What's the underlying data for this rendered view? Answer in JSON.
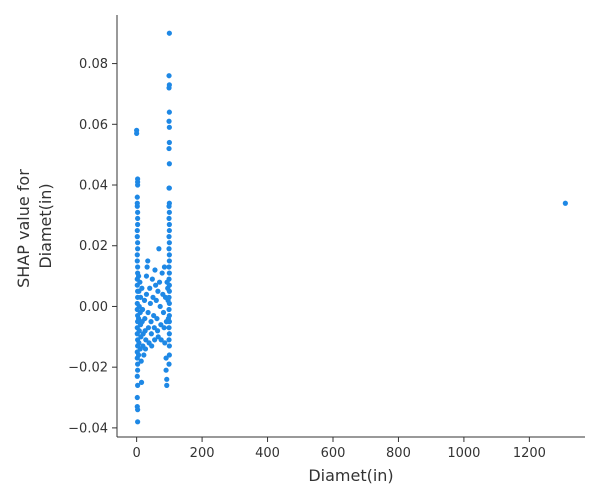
{
  "chart_data": {
    "type": "scatter",
    "title": "",
    "xlabel": "Diamet(in)",
    "ylabel_lines": [
      "SHAP value for",
      "Diamet(in)"
    ],
    "xlim": [
      -60,
      1370
    ],
    "ylim": [
      -0.043,
      0.096
    ],
    "x_ticks": [
      0,
      200,
      400,
      600,
      800,
      1000,
      1200
    ],
    "x_tick_labels": [
      "0",
      "200",
      "400",
      "600",
      "800",
      "1000",
      "1200"
    ],
    "y_ticks": [
      -0.04,
      -0.02,
      0.0,
      0.02,
      0.04,
      0.06,
      0.08
    ],
    "y_tick_labels": [
      "−0.04",
      "−0.02",
      "0.00",
      "0.02",
      "0.04",
      "0.06",
      "0.08"
    ],
    "grid": false,
    "point_color": "#1E88E5",
    "points": [
      [
        0,
        0.058
      ],
      [
        0,
        0.057
      ],
      [
        3,
        0.042
      ],
      [
        3,
        0.041
      ],
      [
        3,
        0.04
      ],
      [
        2,
        0.036
      ],
      [
        2,
        0.034
      ],
      [
        2,
        0.033
      ],
      [
        3,
        0.031
      ],
      [
        3,
        0.029
      ],
      [
        3,
        0.027
      ],
      [
        2,
        0.025
      ],
      [
        2,
        0.023
      ],
      [
        3,
        0.021
      ],
      [
        3,
        0.019
      ],
      [
        2,
        0.017
      ],
      [
        2,
        0.015
      ],
      [
        3,
        0.013
      ],
      [
        3,
        0.011
      ],
      [
        2,
        0.009
      ],
      [
        2,
        0.007
      ],
      [
        3,
        0.005
      ],
      [
        3,
        0.003
      ],
      [
        2,
        0.001
      ],
      [
        2,
        -0.001
      ],
      [
        3,
        -0.003
      ],
      [
        3,
        -0.005
      ],
      [
        2,
        -0.007
      ],
      [
        2,
        -0.009
      ],
      [
        3,
        -0.011
      ],
      [
        3,
        -0.013
      ],
      [
        2,
        -0.015
      ],
      [
        2,
        -0.017
      ],
      [
        3,
        -0.019
      ],
      [
        3,
        -0.021
      ],
      [
        2,
        -0.023
      ],
      [
        3,
        -0.026
      ],
      [
        2,
        -0.03
      ],
      [
        2,
        -0.033
      ],
      [
        3,
        -0.034
      ],
      [
        3,
        -0.038
      ],
      [
        6,
        0.01
      ],
      [
        7,
        0.005
      ],
      [
        8,
        0.0
      ],
      [
        6,
        -0.004
      ],
      [
        8,
        -0.008
      ],
      [
        7,
        -0.012
      ],
      [
        6,
        -0.016
      ],
      [
        10,
        0.008
      ],
      [
        12,
        0.003
      ],
      [
        11,
        -0.002
      ],
      [
        12,
        -0.006
      ],
      [
        13,
        -0.01
      ],
      [
        11,
        -0.014
      ],
      [
        14,
        -0.018
      ],
      [
        15,
        -0.025
      ],
      [
        16,
        0.006
      ],
      [
        18,
        -0.001
      ],
      [
        17,
        -0.005
      ],
      [
        20,
        -0.009
      ],
      [
        19,
        -0.013
      ],
      [
        22,
        -0.016
      ],
      [
        24,
        0.002
      ],
      [
        25,
        -0.004
      ],
      [
        26,
        -0.008
      ],
      [
        28,
        -0.011
      ],
      [
        27,
        -0.014
      ],
      [
        30,
        0.004
      ],
      [
        30,
        0.01
      ],
      [
        32,
        0.013
      ],
      [
        34,
        0.015
      ],
      [
        35,
        -0.002
      ],
      [
        36,
        -0.007
      ],
      [
        38,
        -0.012
      ],
      [
        40,
        0.006
      ],
      [
        42,
        0.001
      ],
      [
        44,
        -0.005
      ],
      [
        45,
        -0.009
      ],
      [
        46,
        -0.013
      ],
      [
        48,
        0.009
      ],
      [
        50,
        0.003
      ],
      [
        52,
        -0.003
      ],
      [
        54,
        -0.007
      ],
      [
        55,
        -0.011
      ],
      [
        56,
        0.012
      ],
      [
        58,
        0.007
      ],
      [
        60,
        0.002
      ],
      [
        62,
        -0.004
      ],
      [
        64,
        -0.008
      ],
      [
        65,
        0.005
      ],
      [
        66,
        -0.01
      ],
      [
        68,
        0.019
      ],
      [
        70,
        0.008
      ],
      [
        72,
        0.0
      ],
      [
        74,
        -0.006
      ],
      [
        75,
        -0.011
      ],
      [
        78,
        0.011
      ],
      [
        80,
        0.004
      ],
      [
        82,
        -0.002
      ],
      [
        84,
        -0.007
      ],
      [
        85,
        0.013
      ],
      [
        86,
        -0.012
      ],
      [
        88,
        0.003
      ],
      [
        90,
        -0.017
      ],
      [
        90,
        -0.021
      ],
      [
        92,
        -0.024
      ],
      [
        92,
        -0.026
      ],
      [
        91,
        -0.005
      ],
      [
        93,
        0.008
      ],
      [
        100,
        0.09
      ],
      [
        99,
        0.076
      ],
      [
        100,
        0.073
      ],
      [
        99,
        0.072
      ],
      [
        100,
        0.064
      ],
      [
        99,
        0.061
      ],
      [
        100,
        0.059
      ],
      [
        100,
        0.054
      ],
      [
        99,
        0.052
      ],
      [
        100,
        0.047
      ],
      [
        99,
        0.039
      ],
      [
        100,
        0.039
      ],
      [
        100,
        0.034
      ],
      [
        99,
        0.033
      ],
      [
        100,
        0.031
      ],
      [
        99,
        0.029
      ],
      [
        100,
        0.027
      ],
      [
        100,
        0.025
      ],
      [
        99,
        0.023
      ],
      [
        100,
        0.021
      ],
      [
        99,
        0.019
      ],
      [
        100,
        0.017
      ],
      [
        100,
        0.015
      ],
      [
        99,
        0.013
      ],
      [
        100,
        0.011
      ],
      [
        99,
        0.009
      ],
      [
        100,
        0.007
      ],
      [
        100,
        0.005
      ],
      [
        99,
        0.003
      ],
      [
        100,
        0.001
      ],
      [
        99,
        -0.001
      ],
      [
        100,
        -0.003
      ],
      [
        100,
        -0.005
      ],
      [
        99,
        -0.007
      ],
      [
        100,
        -0.009
      ],
      [
        99,
        -0.011
      ],
      [
        100,
        -0.013
      ],
      [
        100,
        -0.016
      ],
      [
        99,
        -0.019
      ],
      [
        96,
        0.002
      ],
      [
        97,
        -0.004
      ],
      [
        95,
        0.006
      ],
      [
        1310,
        0.034
      ]
    ]
  }
}
